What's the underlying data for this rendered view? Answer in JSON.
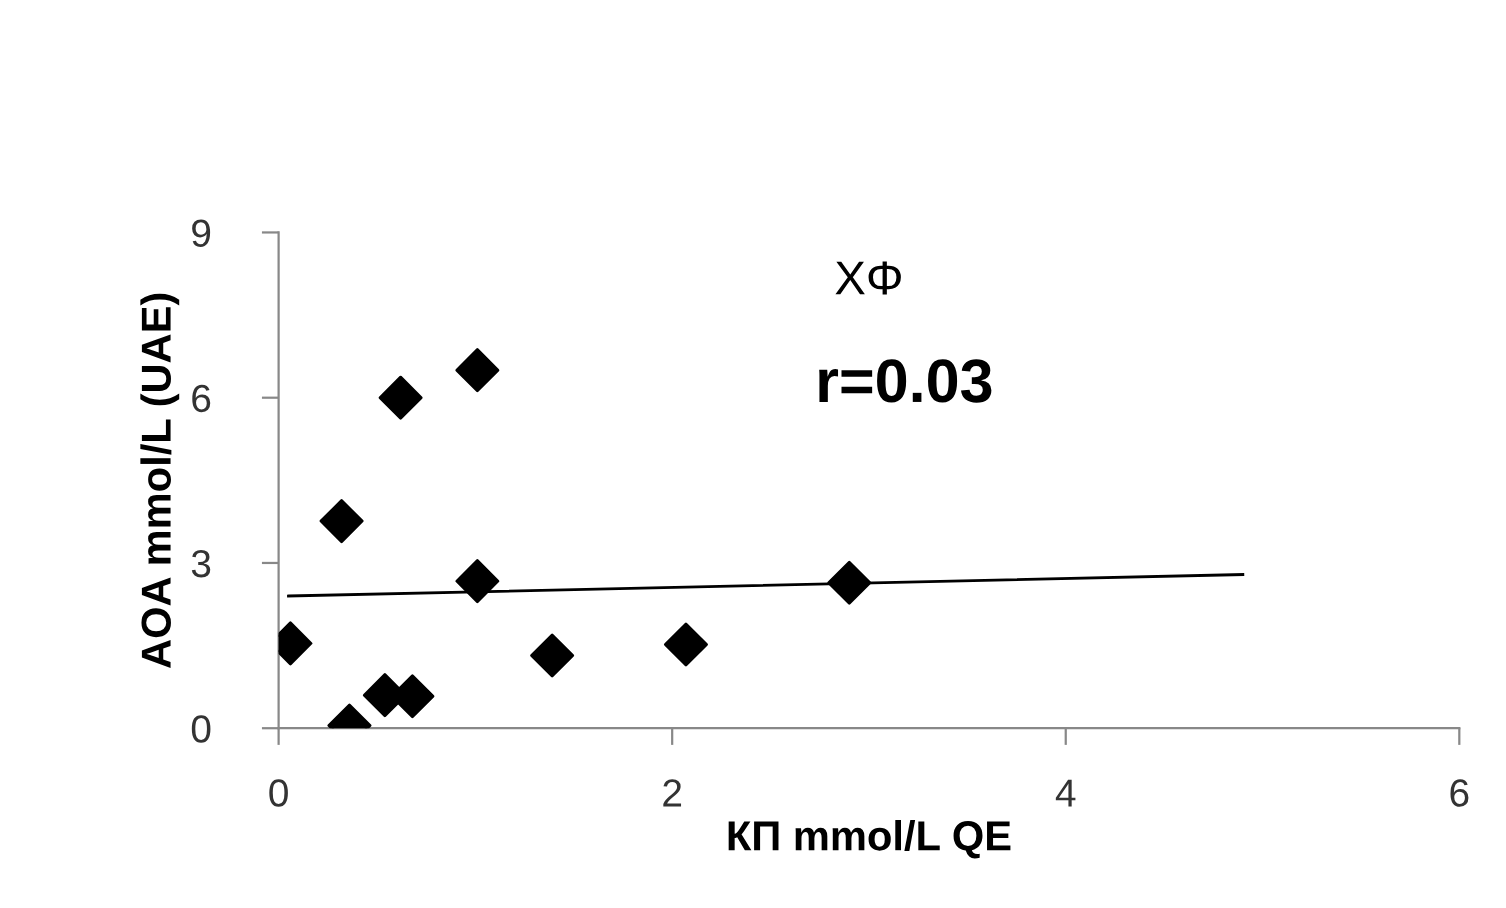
{
  "chart_data": {
    "type": "scatter",
    "title": "ΧΦ",
    "xlabel": "КП mmol/L QE",
    "ylabel": "AOA mmol/L (UAE)",
    "annotations": [
      "r=0.03"
    ],
    "xlim": [
      0,
      6
    ],
    "xticks": [
      0,
      2,
      4,
      6
    ],
    "ylim": [
      0,
      9
    ],
    "yticks": [
      0,
      3,
      6,
      9
    ],
    "grid": false,
    "legend": false,
    "series": [
      {
        "color": "#000000",
        "marker": "diamond",
        "x": [
          0.06,
          0.32,
          0.62,
          1.01,
          1.01,
          0.36,
          0.54,
          0.68,
          1.39,
          2.07,
          2.9
        ],
        "values": [
          1.54,
          3.76,
          6.0,
          6.5,
          2.67,
          0.05,
          0.6,
          0.58,
          1.32,
          1.52,
          2.64
        ]
      },
      {
        "type": "line",
        "color": "#000000",
        "marker": "none",
        "line_style": "solid",
        "x": [
          0.05,
          4.9
        ],
        "values": [
          2.4,
          2.79
        ]
      }
    ]
  }
}
